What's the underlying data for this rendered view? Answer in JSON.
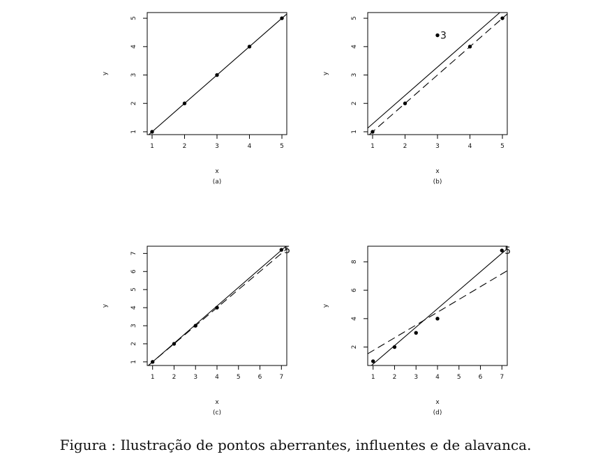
{
  "caption": "Figura : Ilustração de pontos aberrantes, influentes e de alavanca.",
  "colors": {
    "axis": "#000000",
    "line": "#000000",
    "point": "#000000",
    "background": "#ffffff"
  },
  "chart_data": [
    {
      "type": "scatter",
      "panel_label": "(a)",
      "xlabel": "x",
      "ylabel": "y",
      "xlim": [
        0.85,
        5.15
      ],
      "ylim": [
        0.9,
        5.2
      ],
      "xticks": [
        1,
        2,
        3,
        4,
        5
      ],
      "yticks": [
        1,
        2,
        3,
        4,
        5
      ],
      "points": [
        {
          "x": 1,
          "y": 1
        },
        {
          "x": 2,
          "y": 2
        },
        {
          "x": 3,
          "y": 3
        },
        {
          "x": 4,
          "y": 4
        },
        {
          "x": 5,
          "y": 5
        }
      ],
      "lines": [
        {
          "style": "solid",
          "intercept": 0,
          "slope": 1
        }
      ]
    },
    {
      "type": "scatter",
      "panel_label": "(b)",
      "xlabel": "x",
      "ylabel": "y",
      "xlim": [
        0.85,
        5.15
      ],
      "ylim": [
        0.9,
        5.2
      ],
      "xticks": [
        1,
        2,
        3,
        4,
        5
      ],
      "yticks": [
        1,
        2,
        3,
        4,
        5
      ],
      "points": [
        {
          "x": 1,
          "y": 1
        },
        {
          "x": 2,
          "y": 2
        },
        {
          "x": 3,
          "y": 4.4,
          "label": "3"
        },
        {
          "x": 4,
          "y": 4
        },
        {
          "x": 5,
          "y": 5
        }
      ],
      "lines": [
        {
          "style": "solid",
          "intercept": 0.28,
          "slope": 1
        },
        {
          "style": "dashed",
          "intercept": 0,
          "slope": 1
        }
      ]
    },
    {
      "type": "scatter",
      "panel_label": "(c)",
      "xlabel": "x",
      "ylabel": "y",
      "xlim": [
        0.75,
        7.25
      ],
      "ylim": [
        0.8,
        7.4
      ],
      "xticks": [
        1,
        2,
        3,
        4,
        5,
        6,
        7
      ],
      "yticks": [
        1,
        2,
        3,
        4,
        5,
        6,
        7
      ],
      "points": [
        {
          "x": 1,
          "y": 1
        },
        {
          "x": 2,
          "y": 2
        },
        {
          "x": 3,
          "y": 3
        },
        {
          "x": 4,
          "y": 4
        },
        {
          "x": 7,
          "y": 7.2,
          "label": "5"
        }
      ],
      "lines": [
        {
          "style": "solid",
          "intercept": -0.03,
          "slope": 1.03
        },
        {
          "style": "dashed",
          "intercept": 0,
          "slope": 1
        }
      ]
    },
    {
      "type": "scatter",
      "panel_label": "(d)",
      "xlabel": "x",
      "ylabel": "y",
      "xlim": [
        0.75,
        7.25
      ],
      "ylim": [
        0.7,
        9.1
      ],
      "xticks": [
        1,
        2,
        3,
        4,
        5,
        6,
        7
      ],
      "yticks": [
        2,
        4,
        6,
        8
      ],
      "points": [
        {
          "x": 1,
          "y": 1
        },
        {
          "x": 2,
          "y": 2
        },
        {
          "x": 3,
          "y": 3
        },
        {
          "x": 4,
          "y": 4
        },
        {
          "x": 7,
          "y": 8.8,
          "label": "5"
        }
      ],
      "lines": [
        {
          "style": "solid",
          "intercept": -0.5,
          "slope": 1.3
        },
        {
          "style": "dashed",
          "intercept": 0.85,
          "slope": 0.9
        }
      ]
    }
  ]
}
